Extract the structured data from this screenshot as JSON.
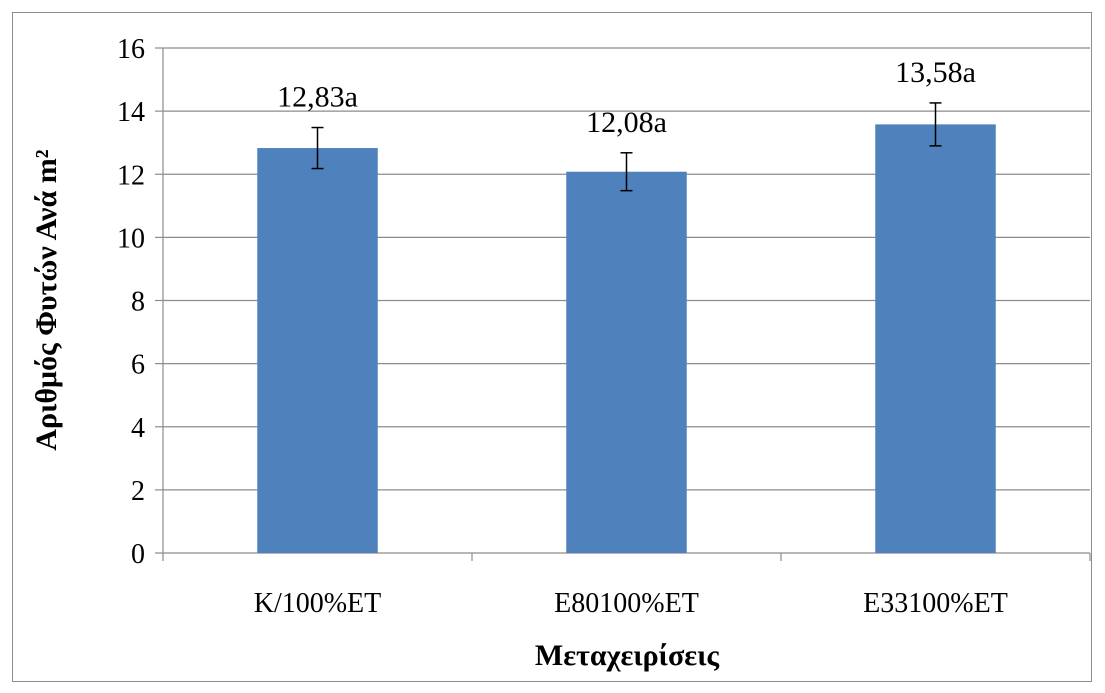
{
  "chart_data": {
    "type": "bar",
    "categories": [
      "K/100%ET",
      "E80100%ET",
      "E33100%ET"
    ],
    "values": [
      12.83,
      12.08,
      13.58
    ],
    "error": [
      0.65,
      0.6,
      0.68
    ],
    "data_labels": [
      "12,83a",
      "12,08a",
      "13,58a"
    ],
    "ylim": [
      0,
      16
    ],
    "yticks": [
      0,
      2,
      4,
      6,
      8,
      10,
      12,
      14,
      16
    ],
    "xlabel": "Μεταχειρίσεις",
    "ylabel": "Αριθμός Φυτών Ανά m²",
    "grid": true,
    "legend": "none",
    "bar_color": "#4f81bd",
    "grid_color": "#8c8c8c"
  }
}
